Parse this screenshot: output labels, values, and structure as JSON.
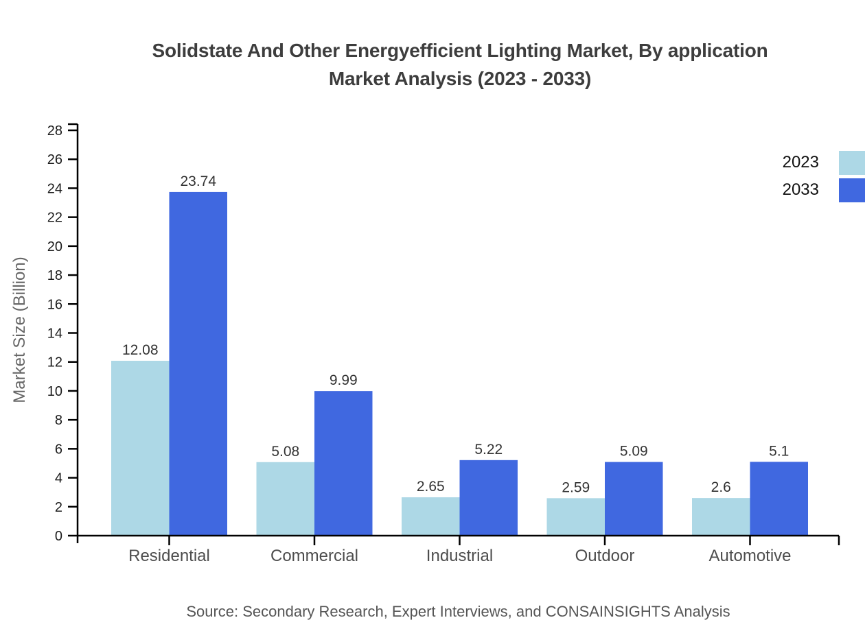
{
  "title": {
    "line1": "Solidstate And Other Energyefficient Lighting Market, By application",
    "line2": "Market Analysis (2023 - 2033)"
  },
  "source": "Source: Secondary Research, Expert Interviews, and CONSAINSIGHTS Analysis",
  "chart_data": {
    "type": "bar",
    "title": "Solidstate And Other Energyefficient Lighting Market, By application Market Analysis (2023 - 2033)",
    "categories": [
      "Residential",
      "Commercial",
      "Industrial",
      "Outdoor",
      "Automotive"
    ],
    "series": [
      {
        "name": "2023",
        "color": "#add8e6",
        "values": [
          12.08,
          5.08,
          2.65,
          2.59,
          2.6
        ]
      },
      {
        "name": "2033",
        "color": "#4068e0",
        "values": [
          23.74,
          9.99,
          5.22,
          5.09,
          5.1
        ]
      }
    ],
    "xlabel": "",
    "ylabel": "Market Size (Billion)",
    "ylim": [
      0,
      28
    ],
    "ytick_step": 2,
    "grid": false,
    "legend_position": "top-right",
    "value_labels": true,
    "colors": {
      "axis": "#000000",
      "ytick_label": "#1b1b1b",
      "category_label": "#4d4d4d",
      "value_label": "#333333",
      "ylabel_text": "#666666"
    }
  }
}
